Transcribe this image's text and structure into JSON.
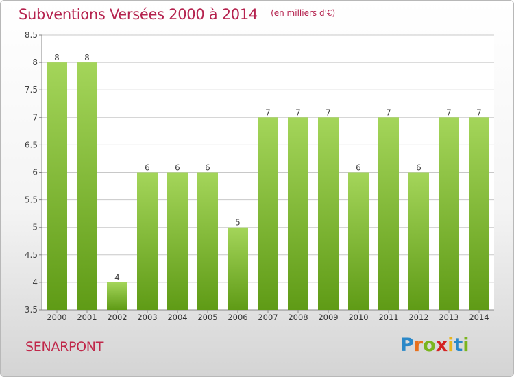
{
  "header": {
    "title": "Subventions Versées 2000 à 2014",
    "subtitle": "(en milliers d'€)"
  },
  "footer": {
    "town": "SENARPONT",
    "logo_text": "Proxiti"
  },
  "colors": {
    "title": "#b5224e",
    "bar_top": "#a4d55a",
    "bar_bottom": "#5f9b16",
    "grid": "#c8c8c8"
  },
  "chart_data": {
    "type": "bar",
    "title": "Subventions Versées 2000 à 2014",
    "subtitle": "(en milliers d'€)",
    "xlabel": "",
    "ylabel": "",
    "categories": [
      "2000",
      "2001",
      "2002",
      "2003",
      "2004",
      "2005",
      "2006",
      "2007",
      "2008",
      "2009",
      "2010",
      "2011",
      "2012",
      "2013",
      "2014"
    ],
    "values": [
      8,
      8,
      4,
      6,
      6,
      6,
      5,
      7,
      7,
      7,
      6,
      7,
      6,
      7,
      7
    ],
    "ylim": [
      3.5,
      8.5
    ],
    "yticks": [
      3.5,
      4,
      4.5,
      5,
      5.5,
      6,
      6.5,
      7,
      7.5,
      8,
      8.5
    ],
    "ytick_labels": [
      "3.5",
      "4",
      "4.5",
      "5",
      "5.5",
      "6",
      "6.5",
      "7",
      "7.5",
      "8",
      "8.5"
    ],
    "data_labels": [
      "8",
      "8",
      "4",
      "6",
      "6",
      "6",
      "5",
      "7",
      "7",
      "7",
      "6",
      "7",
      "6",
      "7",
      "7"
    ],
    "grid": true,
    "legend": "none"
  }
}
